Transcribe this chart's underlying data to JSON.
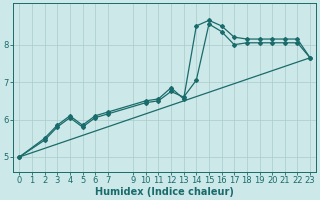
{
  "xlabel": "Humidex (Indice chaleur)",
  "background_color": "#cde8e8",
  "grid_color": "#aacccc",
  "line_color": "#1a6b6b",
  "xlim": [
    -0.5,
    23.5
  ],
  "ylim": [
    4.6,
    9.1
  ],
  "yticks": [
    5,
    6,
    7,
    8
  ],
  "xticks": [
    0,
    1,
    2,
    3,
    4,
    5,
    6,
    7,
    9,
    10,
    11,
    12,
    13,
    14,
    15,
    16,
    17,
    18,
    19,
    20,
    21,
    22,
    23
  ],
  "line1_x": [
    0,
    2,
    3,
    4,
    5,
    6,
    7,
    10,
    11,
    12,
    13,
    14,
    15,
    16,
    17,
    18,
    19,
    20,
    21,
    22,
    23
  ],
  "line1_y": [
    5.0,
    5.5,
    5.85,
    6.1,
    5.85,
    6.1,
    6.2,
    6.5,
    6.55,
    6.85,
    6.55,
    8.5,
    8.65,
    8.5,
    8.2,
    8.15,
    8.15,
    8.15,
    8.15,
    8.15,
    7.65
  ],
  "line2_x": [
    0,
    2,
    3,
    4,
    5,
    6,
    7,
    10,
    11,
    12,
    13,
    14,
    15,
    16,
    17,
    18,
    19,
    20,
    21,
    22,
    23
  ],
  "line2_y": [
    5.0,
    5.45,
    5.8,
    6.05,
    5.8,
    6.05,
    6.15,
    6.45,
    6.5,
    6.75,
    6.6,
    7.05,
    8.55,
    8.35,
    8.0,
    8.05,
    8.05,
    8.05,
    8.05,
    8.05,
    7.65
  ],
  "line3_x": [
    0,
    23
  ],
  "line3_y": [
    5.0,
    7.65
  ],
  "font_size": 6,
  "marker_size": 2.0,
  "linewidth": 0.9
}
